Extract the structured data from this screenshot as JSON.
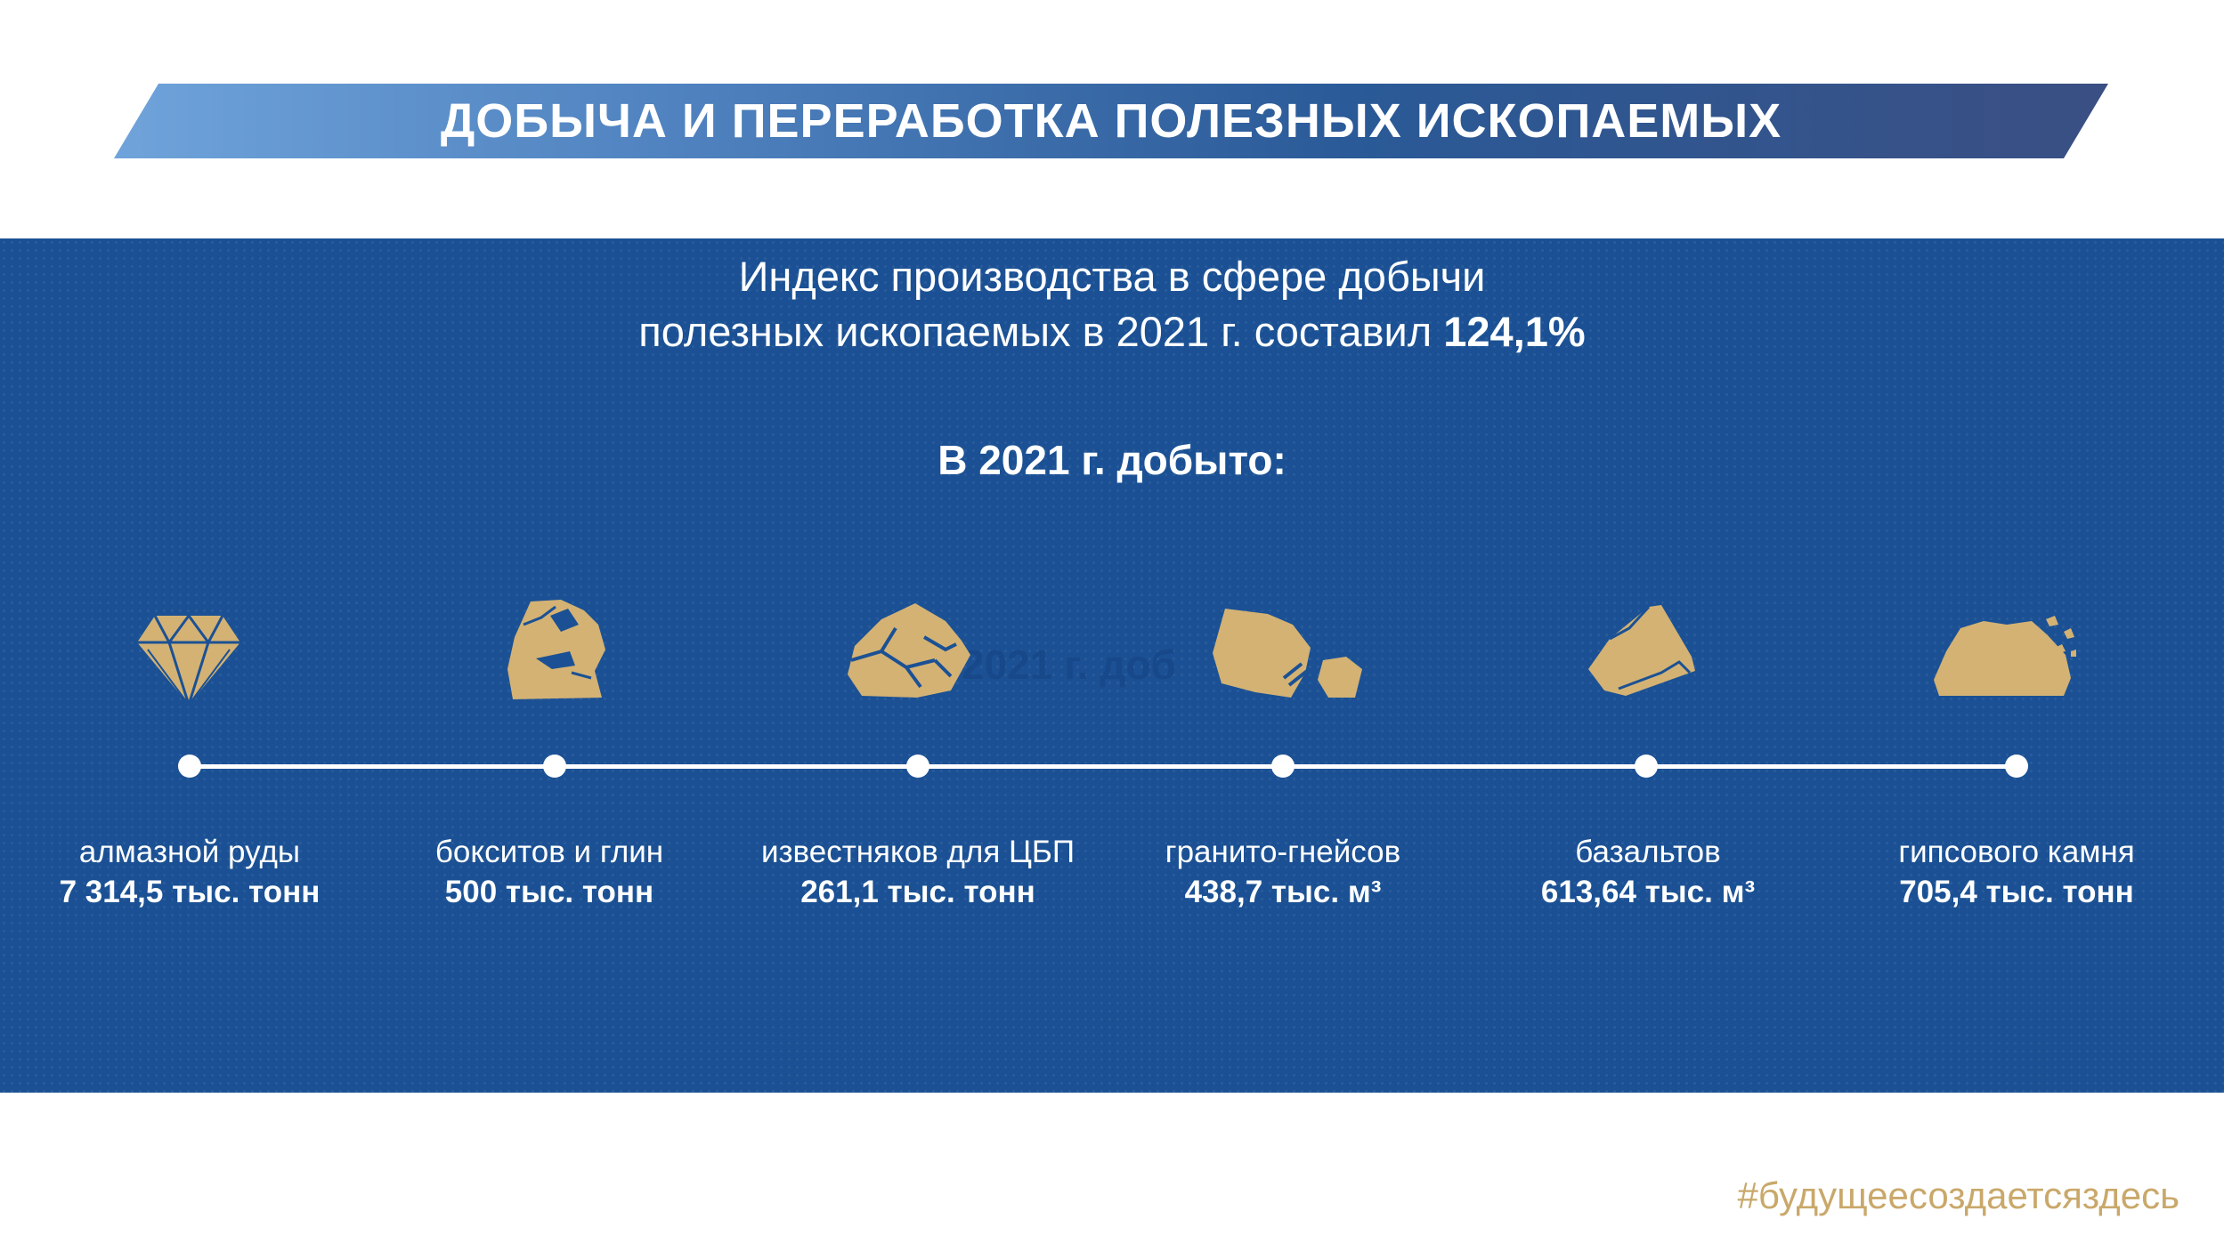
{
  "header": {
    "title": "ДОБЫЧА И ПЕРЕРАБОТКА ПОЛЕЗНЫХ ИСКОПАЕМЫХ"
  },
  "intro": {
    "line1": "Индекс производства в сфере добычи",
    "line2": "полезных ископаемых в 2021 г. составил",
    "index_value": "124,1%"
  },
  "section": {
    "heading": "В 2021 г. добыто:",
    "ghost_text": "2021 г. доб"
  },
  "minerals": [
    {
      "name": "алмазной руды",
      "value": "7 314,5 тыс. тонн",
      "icon": "diamond-icon"
    },
    {
      "name": "бокситов и глин",
      "value": "500 тыс. тонн",
      "icon": "bauxite-rock-icon"
    },
    {
      "name": "известняков для ЦБП",
      "value": "261,1 тыс. тонн",
      "icon": "limestone-rock-icon"
    },
    {
      "name": "гранито-гнейсов",
      "value": "438,7 тыс. м³",
      "icon": "granite-rock-icon"
    },
    {
      "name": "базальтов",
      "value": "613,64 тыс. м³",
      "icon": "basalt-rock-icon"
    },
    {
      "name": "гипсового камня",
      "value": "705,4 тыс. тонн",
      "icon": "gypsum-rock-icon"
    }
  ],
  "footer": {
    "hashtag": "#будущеесоздаетсяздесь"
  },
  "colors": {
    "panel": "#1b5194",
    "icon_gold": "#d4b274",
    "hashtag": "#c9a86a",
    "banner_start": "#6fa3da",
    "banner_end": "#3a4f83"
  }
}
